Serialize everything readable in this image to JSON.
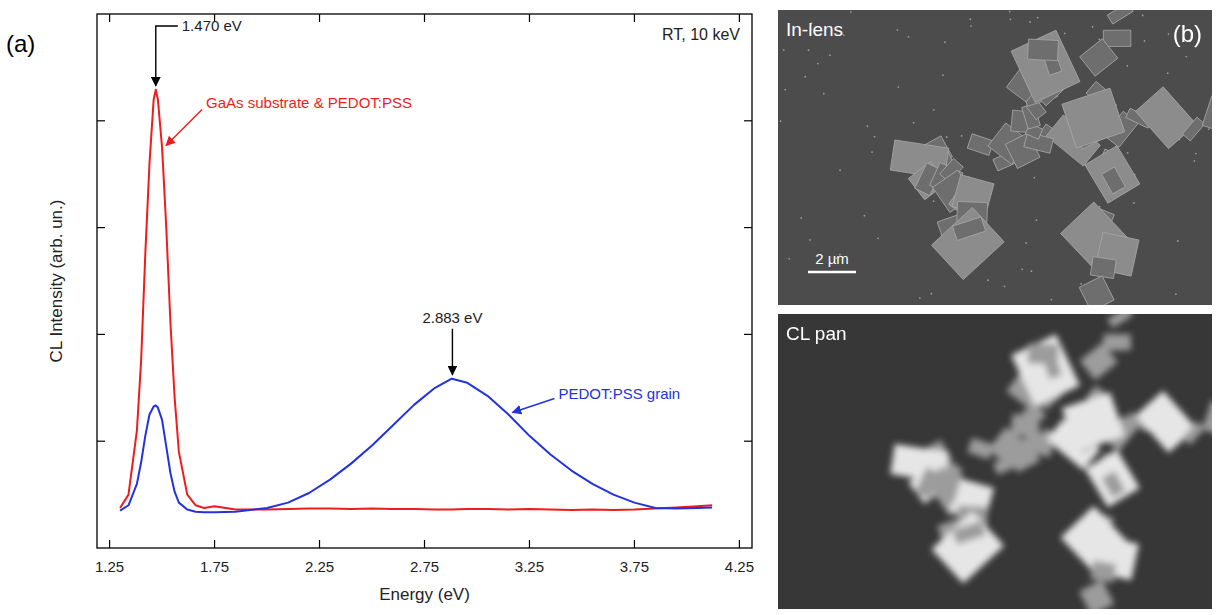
{
  "chart_data": {
    "type": "line",
    "panel": "(a)",
    "x_label": "Energy (eV)",
    "y_label": "CL Intensity (arb. un.)",
    "xlim": [
      1.19,
      4.31
    ],
    "xticks": [
      1.25,
      1.75,
      2.25,
      2.75,
      3.25,
      3.75,
      4.25
    ],
    "ylim": [
      0,
      100
    ],
    "yticks": [
      20,
      40,
      60,
      80
    ],
    "tick_labels": "x",
    "grid": false,
    "x": [
      1.3,
      1.34,
      1.38,
      1.4,
      1.42,
      1.44,
      1.46,
      1.47,
      1.48,
      1.5,
      1.52,
      1.54,
      1.56,
      1.58,
      1.62,
      1.66,
      1.7,
      1.75,
      1.85,
      2.0,
      2.1,
      2.2,
      2.3,
      2.4,
      2.5,
      2.6,
      2.7,
      2.8,
      2.88,
      2.95,
      3.05,
      3.15,
      3.25,
      3.35,
      3.45,
      3.55,
      3.65,
      3.75,
      3.85,
      3.95,
      4.05,
      4.12
    ],
    "series": [
      {
        "name": "GaAs substrate & PEDOT:PSS",
        "color": "#ee1c1c",
        "values": [
          7.5,
          10,
          22,
          35,
          55,
          72,
          84,
          85.8,
          84,
          75,
          60,
          42,
          28,
          18,
          10,
          8,
          7.5,
          7.8,
          7.2,
          7.2,
          7.3,
          7.4,
          7.4,
          7.3,
          7.4,
          7.3,
          7.3,
          7.2,
          7.2,
          7.3,
          7.3,
          7.2,
          7.3,
          7.2,
          7.1,
          7.2,
          7.1,
          7.2,
          7.4,
          7.6,
          7.8,
          8.0
        ]
      },
      {
        "name": "PEDOT:PSS grain",
        "color": "#2233dd",
        "values": [
          7.0,
          8,
          12,
          16,
          21,
          25,
          26.5,
          26.7,
          26.3,
          24,
          19,
          14,
          10.5,
          8.5,
          7.2,
          6.8,
          6.7,
          6.7,
          6.8,
          7.5,
          8.5,
          10.3,
          12.8,
          15.8,
          19.2,
          23,
          26.8,
          30,
          31.7,
          31,
          28.5,
          25,
          21,
          17.5,
          14.5,
          12,
          10,
          8.5,
          7.5,
          7.4,
          7.5,
          7.6
        ]
      }
    ],
    "annotations": [
      {
        "text": "1.470 eV",
        "x": 1.47,
        "y": 85.8
      },
      {
        "text": "2.883 eV",
        "x": 2.883,
        "y": 31.7
      },
      {
        "text": "RT, 10 keV"
      }
    ]
  },
  "panel_b": {
    "label": "(b)",
    "images": [
      {
        "label": "In-lens",
        "scale_bar": "2 µm"
      },
      {
        "label": "CL pan"
      }
    ]
  }
}
